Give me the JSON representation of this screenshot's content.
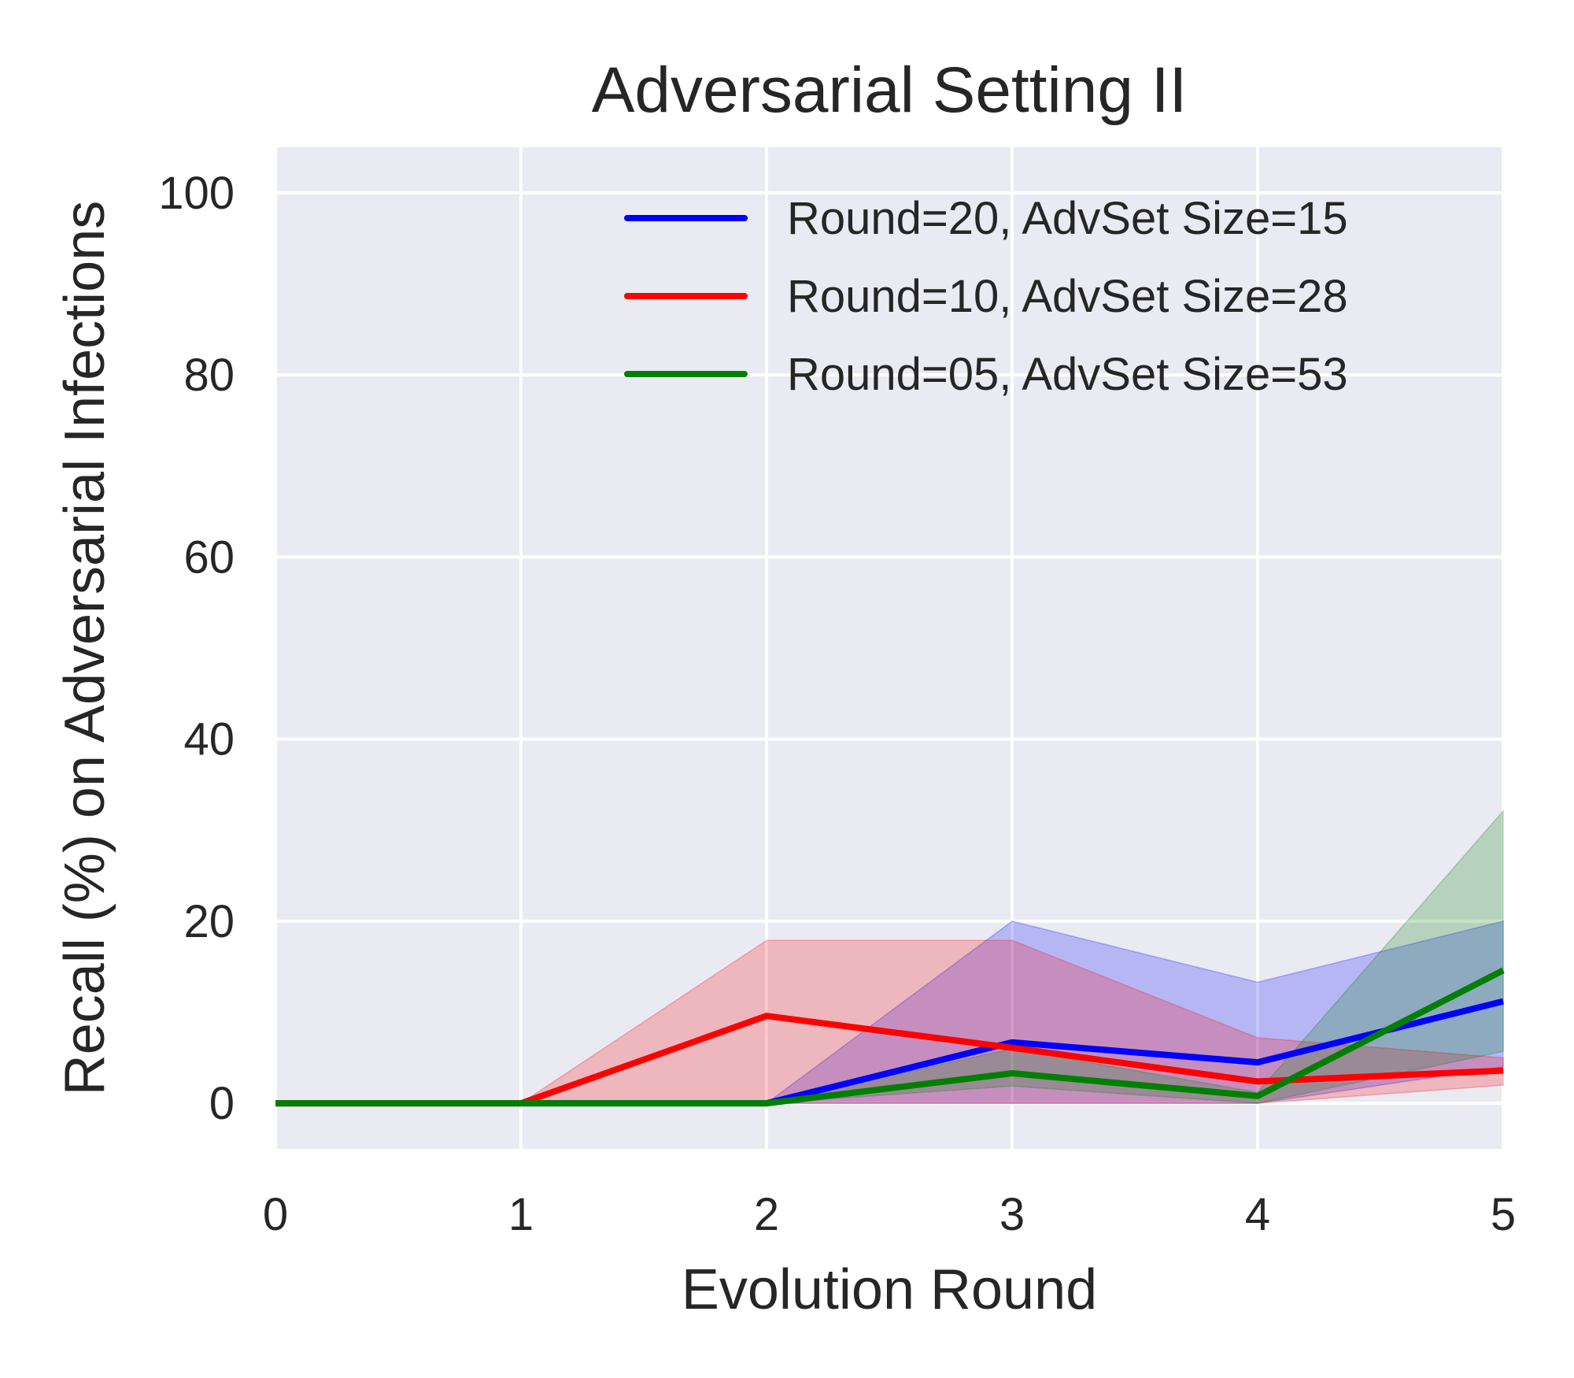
{
  "chart_data": {
    "type": "line",
    "title": "Adversarial Setting II",
    "xlabel": "Evolution Round",
    "ylabel": "Recall (%) on Adversarial Infections",
    "x": [
      0,
      1,
      2,
      3,
      4,
      5
    ],
    "xlim": [
      0,
      5
    ],
    "ylim": [
      -5,
      105
    ],
    "xticks": [
      "0",
      "1",
      "2",
      "3",
      "4",
      "5"
    ],
    "yticks": [
      "0",
      "20",
      "40",
      "60",
      "80",
      "100"
    ],
    "grid": true,
    "legend_position": "top-right",
    "series": [
      {
        "name": "Round=20, AdvSet Size=15",
        "color": "#0000ff",
        "values": [
          0,
          0,
          0,
          6.7,
          4.5,
          11.2
        ],
        "lower": [
          0,
          0,
          0,
          0,
          0,
          4
        ],
        "upper": [
          0,
          0,
          0,
          20,
          13.3,
          20
        ]
      },
      {
        "name": "Round=10, AdvSet Size=28",
        "color": "#ff0000",
        "values": [
          0,
          0,
          9.6,
          6.1,
          2.4,
          3.6
        ],
        "lower": [
          0,
          0,
          0,
          0,
          0,
          2
        ],
        "upper": [
          0,
          0,
          17.9,
          17.9,
          7.2,
          5
        ]
      },
      {
        "name": "Round=05, AdvSet Size=53",
        "color": "#008000",
        "values": [
          0,
          0,
          0,
          3.3,
          0.8,
          14.6
        ],
        "lower": [
          0,
          0,
          0,
          1.9,
          0,
          5.7
        ],
        "upper": [
          0,
          0,
          0,
          6,
          1.2,
          32.1
        ]
      }
    ]
  }
}
